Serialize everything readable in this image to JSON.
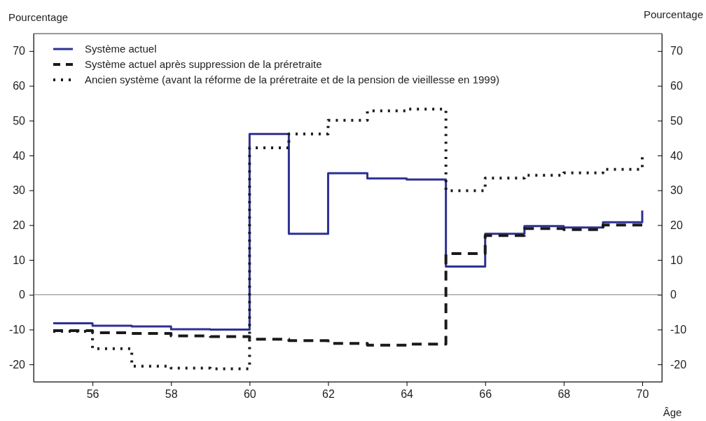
{
  "chart_data": {
    "type": "step",
    "ylabel": "Pourcentage",
    "y2label": "Pourcentage",
    "xlabel": "Âge",
    "x": [
      55,
      56,
      57,
      58,
      59,
      60,
      61,
      62,
      63,
      64,
      65,
      66,
      67,
      68,
      69,
      70
    ],
    "series": [
      {
        "name": "Système actuel",
        "color": "#2e3192",
        "line_style": "solid",
        "values": [
          -8.2,
          -8.9,
          -9.1,
          -9.9,
          -10.0,
          46.2,
          17.5,
          34.9,
          33.4,
          33.1,
          8.1,
          17.5,
          19.7,
          19.3,
          20.8,
          24.2
        ]
      },
      {
        "name": "Système actuel après suppression de la préretraite",
        "color": "#1a1a1a",
        "line_style": "dashed",
        "values": [
          -10.3,
          -10.9,
          -11.1,
          -11.8,
          -12.0,
          -12.8,
          -13.2,
          -14.0,
          -14.5,
          -14.2,
          11.8,
          17.0,
          19.0,
          18.7,
          20.0,
          20.0
        ]
      },
      {
        "name": "Ancien système (avant la réforme de la préretraite et de la pension de vieillesse en 1999)",
        "color": "#1a1a1a",
        "line_style": "dotted",
        "values": [
          -10.5,
          -15.5,
          -20.5,
          -21.1,
          -21.3,
          42.2,
          46.2,
          50.1,
          52.8,
          53.3,
          29.9,
          33.5,
          34.3,
          35.0,
          36.0,
          39.5
        ]
      }
    ],
    "xlim": [
      54.5,
      70.5
    ],
    "xticks": [
      56,
      58,
      60,
      62,
      64,
      66,
      68,
      70
    ],
    "ylim": [
      -25,
      75
    ],
    "yticks": [
      -20,
      -10,
      0,
      10,
      20,
      30,
      40,
      50,
      60,
      70
    ],
    "y2lim": [
      -25,
      75
    ],
    "y2ticks": [
      -20,
      -10,
      0,
      10,
      20,
      30,
      40,
      50,
      60,
      70
    ],
    "ref_lines": [
      {
        "axis": "y",
        "value": 0,
        "color": "#808080"
      }
    ],
    "grid": false,
    "legend": "top left"
  }
}
